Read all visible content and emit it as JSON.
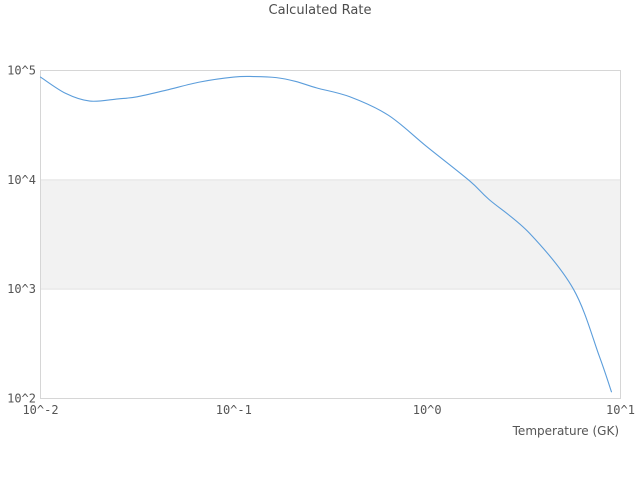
{
  "chart_data": {
    "type": "line",
    "title": "Calculated Rate",
    "xlabel": "Temperature (GK)",
    "ylabel": "",
    "x_scale": "log",
    "y_scale": "log",
    "xlim": [
      0.01,
      10
    ],
    "ylim": [
      100,
      100000
    ],
    "x_ticklabels": [
      "10^-2",
      "10^-1",
      "10^0",
      "10^1"
    ],
    "y_ticklabels": [
      "10^5",
      "10^4",
      "10^3",
      "10^2"
    ],
    "grid": "horizontal band only",
    "legend": "none",
    "shaded_band_y": [
      1000,
      10000
    ],
    "series": [
      {
        "name": "calculated rate",
        "x": [
          0.01,
          0.0135,
          0.018,
          0.0251,
          0.0316,
          0.0447,
          0.0668,
          0.1,
          0.126,
          0.166,
          0.209,
          0.269,
          0.398,
          0.631,
          1.0,
          1.66,
          2.09,
          3.39,
          5.71,
          7.76,
          8.98
        ],
        "y": [
          87100,
          61700,
          52500,
          55000,
          57500,
          66100,
          78500,
          87100,
          88100,
          86100,
          79400,
          69200,
          57500,
          38900,
          20000,
          9770,
          6610,
          3240,
          1000,
          245,
          115
        ]
      }
    ],
    "colors": {
      "line": "#5b9ddb",
      "band_fill": "#f2f2f2",
      "border": "#d6d6d6",
      "band_edge": "#e2e2e2",
      "text": "#555555"
    }
  }
}
